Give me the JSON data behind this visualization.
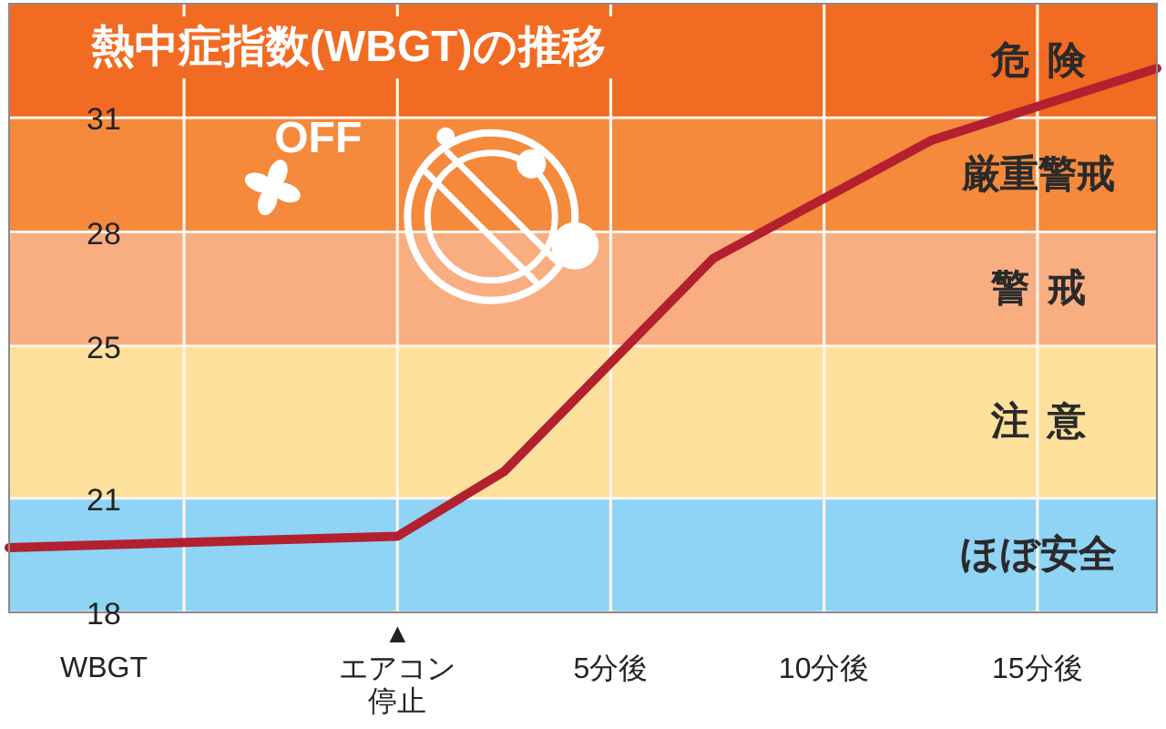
{
  "chart_data": {
    "type": "line",
    "title": "熱中症指数(WBGT)の推移",
    "x": [
      -9.1,
      0,
      2.5,
      7.4,
      12.5,
      17.8
    ],
    "series": [
      {
        "color": "#b3202f",
        "values": [
          19.7,
          20.0,
          21.7,
          27.3,
          30.4,
          32.3
        ]
      }
    ],
    "xlim": [
      -9.1,
      17.8
    ],
    "xticks": [
      {
        "value": -5,
        "label": null
      },
      {
        "value": 0,
        "label": "エアコン停止"
      },
      {
        "value": 5,
        "label": "5分後"
      },
      {
        "value": 10,
        "label": "10分後"
      },
      {
        "value": 15,
        "label": "15分後"
      }
    ],
    "ylim": [
      18,
      34
    ],
    "yticks": [
      18,
      21,
      25,
      28,
      31
    ],
    "bands": [
      {
        "axis": "y",
        "from": 31,
        "to": 34,
        "label": "危険",
        "color": "#f26b22"
      },
      {
        "axis": "y",
        "from": 28,
        "to": 31,
        "label": "厳重警戒",
        "color": "#f5893c"
      },
      {
        "axis": "y",
        "from": 25,
        "to": 28,
        "label": "警戒",
        "color": "#f9ae82"
      },
      {
        "axis": "y",
        "from": 21,
        "to": 25,
        "label": "注意",
        "color": "#fde09b"
      },
      {
        "axis": "y",
        "from": 18,
        "to": 21,
        "label": "ほぼ安全",
        "color": "#8fd3f5"
      }
    ],
    "annotations": [
      "OFF",
      "WBGT",
      {
        "text": "▲",
        "x": 0,
        "y": 18
      }
    ],
    "grid": true,
    "line_style": "solid",
    "marker": "none"
  }
}
